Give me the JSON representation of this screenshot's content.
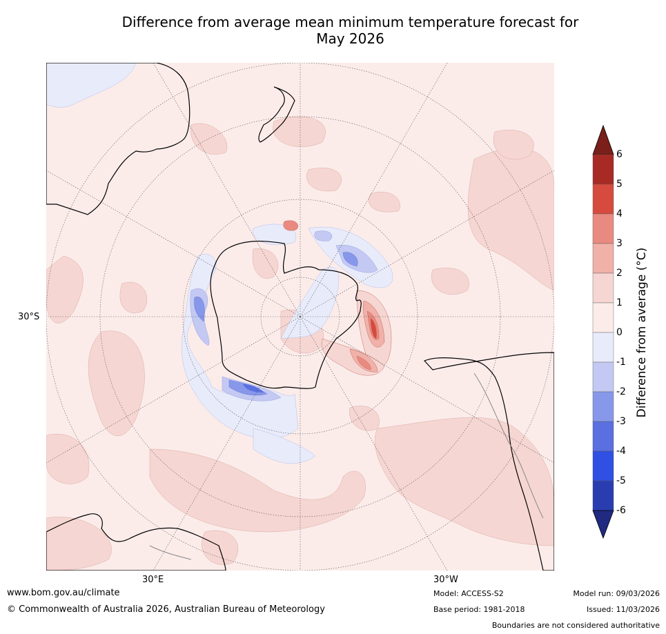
{
  "title": {
    "line1": "Difference from average mean minimum temperature forecast for",
    "line2": "May 2026"
  },
  "map": {
    "projection": "south-polar stereographic",
    "lat_label": "30°S",
    "lon_labels": [
      "30°E",
      "30°W"
    ]
  },
  "colorbar": {
    "title": "Difference from average (°C)",
    "ticks": [
      "6",
      "5",
      "4",
      "3",
      "2",
      "1",
      "0",
      "-1",
      "-2",
      "-3",
      "-4",
      "-5",
      "-6"
    ],
    "colors": [
      "#a82a24",
      "#d64b3e",
      "#e98a80",
      "#f0b1a9",
      "#f6d6d2",
      "#fbecea",
      "#e8ebfa",
      "#c3c9f2",
      "#8797e9",
      "#5a6fe0",
      "#304fe3",
      "#2a3db0"
    ],
    "over_color": "#7a1f1a",
    "under_color": "#1f2a80"
  },
  "footer": {
    "url": "www.bom.gov.au/climate",
    "copyright": "© Commonwealth of Australia 2026, Australian Bureau of Meteorology",
    "model": "Model: ACCESS-S2",
    "base_period": "Base period: 1981-2018",
    "model_run": "Model run: 09/03/2026",
    "issued": "Issued: 11/03/2026",
    "disclaimer": "Boundaries are not considered authoritative"
  }
}
